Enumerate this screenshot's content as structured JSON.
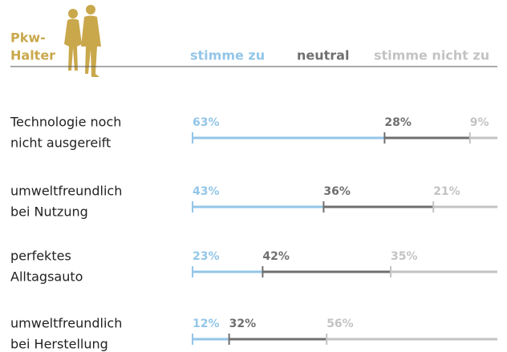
{
  "chart_data": {
    "type": "stacked-bar",
    "title": [
      "Pkw-",
      "Halter"
    ],
    "categories": [
      [
        "Technologie noch",
        "nicht ausgereift"
      ],
      [
        "umweltfreundlich",
        "bei Nutzung"
      ],
      [
        "perfektes",
        "Alltagsauto"
      ],
      [
        "umweltfreundlich",
        "bei Herstellung"
      ]
    ],
    "series": [
      {
        "name": "stimme zu",
        "color": "#93c6e8",
        "values": [
          63,
          43,
          23,
          12
        ],
        "value_labels": [
          "63%",
          "43%",
          "23%",
          "12%"
        ]
      },
      {
        "name": "neutral",
        "color": "#6f6f6f",
        "values": [
          28,
          36,
          42,
          32
        ],
        "value_labels": [
          "28%",
          "36%",
          "42%",
          "32%"
        ]
      },
      {
        "name": "stimme nicht zu",
        "color": "#c3c3c3",
        "values": [
          9,
          21,
          35,
          56
        ],
        "value_labels": [
          "9%",
          "21%",
          "35%",
          "56%"
        ]
      }
    ],
    "xlim": [
      0,
      100
    ]
  }
}
